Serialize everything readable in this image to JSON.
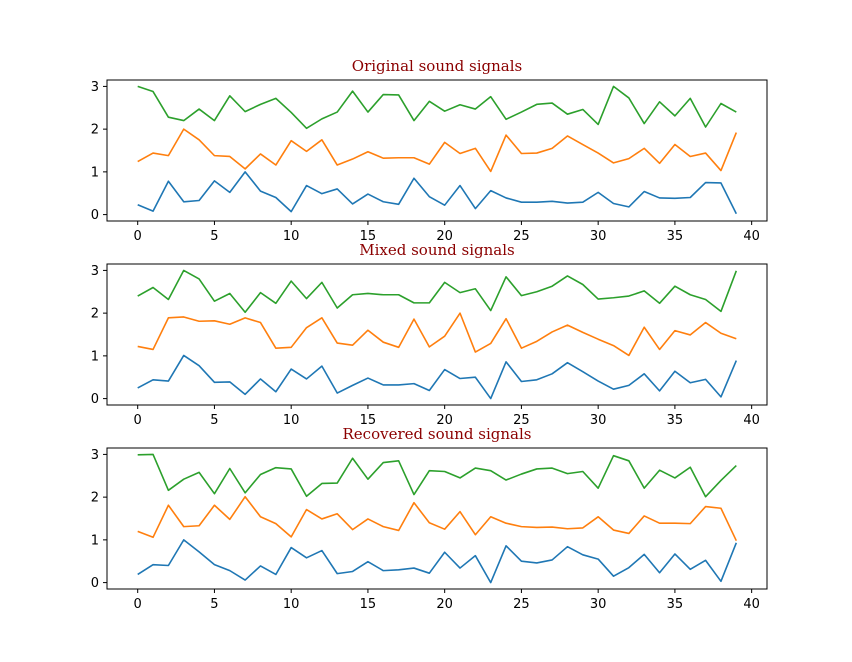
{
  "chart_data": [
    {
      "type": "line",
      "title": "Original sound signals",
      "xlim": [
        -2,
        41
      ],
      "ylim": [
        -0.15,
        3.15
      ],
      "xticks": [
        0,
        5,
        10,
        15,
        20,
        25,
        30,
        35,
        40
      ],
      "yticks": [
        0,
        1,
        2,
        3
      ],
      "grid": false,
      "x": [
        0,
        1,
        2,
        3,
        4,
        5,
        6,
        7,
        8,
        9,
        10,
        11,
        12,
        13,
        14,
        15,
        16,
        17,
        18,
        19,
        20,
        21,
        22,
        23,
        24,
        25,
        26,
        27,
        28,
        29,
        30,
        31,
        32,
        33,
        34,
        35,
        36,
        37,
        38,
        39
      ],
      "series": [
        {
          "color": "#1f77b4",
          "values": [
            0.23,
            0.08,
            0.78,
            0.3,
            0.33,
            0.79,
            0.52,
            1.0,
            0.55,
            0.4,
            0.07,
            0.68,
            0.49,
            0.6,
            0.25,
            0.48,
            0.3,
            0.24,
            0.85,
            0.42,
            0.22,
            0.68,
            0.14,
            0.56,
            0.39,
            0.29,
            0.29,
            0.31,
            0.27,
            0.29,
            0.52,
            0.26,
            0.18,
            0.54,
            0.39,
            0.38,
            0.4,
            0.75,
            0.74,
            0.02
          ]
        },
        {
          "color": "#ff7f0e",
          "values": [
            1.24,
            1.44,
            1.38,
            2.0,
            1.75,
            1.38,
            1.36,
            1.07,
            1.42,
            1.16,
            1.73,
            1.48,
            1.75,
            1.16,
            1.3,
            1.47,
            1.32,
            1.33,
            1.33,
            1.18,
            1.69,
            1.43,
            1.55,
            1.01,
            1.86,
            1.43,
            1.44,
            1.55,
            1.84,
            1.64,
            1.44,
            1.21,
            1.31,
            1.55,
            1.2,
            1.64,
            1.36,
            1.44,
            1.03,
            1.92
          ]
        },
        {
          "color": "#2ca02c",
          "values": [
            3.0,
            2.88,
            2.28,
            2.2,
            2.47,
            2.2,
            2.78,
            2.41,
            2.58,
            2.72,
            2.39,
            2.02,
            2.24,
            2.4,
            2.89,
            2.4,
            2.81,
            2.8,
            2.2,
            2.65,
            2.42,
            2.57,
            2.47,
            2.76,
            2.23,
            2.4,
            2.58,
            2.61,
            2.35,
            2.46,
            2.11,
            3.0,
            2.73,
            2.13,
            2.64,
            2.31,
            2.72,
            2.05,
            2.6,
            2.4
          ]
        }
      ]
    },
    {
      "type": "line",
      "title": "Mixed sound signals",
      "xlim": [
        -2,
        41
      ],
      "ylim": [
        -0.15,
        3.15
      ],
      "xticks": [
        0,
        5,
        10,
        15,
        20,
        25,
        30,
        35,
        40
      ],
      "yticks": [
        0,
        1,
        2,
        3
      ],
      "grid": false,
      "x": [
        0,
        1,
        2,
        3,
        4,
        5,
        6,
        7,
        8,
        9,
        10,
        11,
        12,
        13,
        14,
        15,
        16,
        17,
        18,
        19,
        20,
        21,
        22,
        23,
        24,
        25,
        26,
        27,
        28,
        29,
        30,
        31,
        32,
        33,
        34,
        35,
        36,
        37,
        38,
        39
      ],
      "series": [
        {
          "color": "#1f77b4",
          "values": [
            0.25,
            0.44,
            0.41,
            1.01,
            0.77,
            0.38,
            0.39,
            0.1,
            0.46,
            0.16,
            0.69,
            0.46,
            0.76,
            0.13,
            0.31,
            0.48,
            0.32,
            0.32,
            0.35,
            0.19,
            0.68,
            0.47,
            0.5,
            0.0,
            0.86,
            0.4,
            0.44,
            0.58,
            0.84,
            0.63,
            0.41,
            0.22,
            0.31,
            0.58,
            0.18,
            0.64,
            0.37,
            0.45,
            0.04,
            0.89
          ]
        },
        {
          "color": "#ff7f0e",
          "values": [
            1.22,
            1.15,
            1.89,
            1.91,
            1.81,
            1.82,
            1.74,
            1.89,
            1.78,
            1.18,
            1.2,
            1.66,
            1.89,
            1.3,
            1.25,
            1.6,
            1.32,
            1.2,
            1.86,
            1.21,
            1.46,
            2.0,
            1.09,
            1.29,
            1.87,
            1.18,
            1.34,
            1.56,
            1.72,
            1.55,
            1.39,
            1.24,
            1.01,
            1.67,
            1.15,
            1.59,
            1.49,
            1.78,
            1.53,
            1.4
          ]
        },
        {
          "color": "#2ca02c",
          "values": [
            2.4,
            2.6,
            2.32,
            3.0,
            2.8,
            2.28,
            2.46,
            2.02,
            2.48,
            2.23,
            2.75,
            2.34,
            2.72,
            2.12,
            2.43,
            2.46,
            2.43,
            2.43,
            2.24,
            2.24,
            2.72,
            2.48,
            2.57,
            2.06,
            2.85,
            2.41,
            2.5,
            2.63,
            2.87,
            2.67,
            2.33,
            2.36,
            2.4,
            2.52,
            2.23,
            2.63,
            2.43,
            2.32,
            2.04,
            2.99
          ]
        }
      ]
    },
    {
      "type": "line",
      "title": "Recovered sound signals",
      "xlim": [
        -2,
        41
      ],
      "ylim": [
        -0.15,
        3.15
      ],
      "xticks": [
        0,
        5,
        10,
        15,
        20,
        25,
        30,
        35,
        40
      ],
      "yticks": [
        0,
        1,
        2,
        3
      ],
      "grid": false,
      "x": [
        0,
        1,
        2,
        3,
        4,
        5,
        6,
        7,
        8,
        9,
        10,
        11,
        12,
        13,
        14,
        15,
        16,
        17,
        18,
        19,
        20,
        21,
        22,
        23,
        24,
        25,
        26,
        27,
        28,
        29,
        30,
        31,
        32,
        33,
        34,
        35,
        36,
        37,
        38,
        39
      ],
      "series": [
        {
          "color": "#1f77b4",
          "values": [
            0.19,
            0.42,
            0.4,
            1.0,
            0.72,
            0.42,
            0.28,
            0.06,
            0.39,
            0.19,
            0.82,
            0.58,
            0.75,
            0.21,
            0.26,
            0.49,
            0.28,
            0.3,
            0.34,
            0.22,
            0.71,
            0.34,
            0.63,
            0.0,
            0.86,
            0.5,
            0.46,
            0.53,
            0.84,
            0.65,
            0.55,
            0.15,
            0.35,
            0.66,
            0.23,
            0.67,
            0.31,
            0.52,
            0.03,
            0.93
          ]
        },
        {
          "color": "#ff7f0e",
          "values": [
            1.2,
            1.06,
            1.81,
            1.31,
            1.33,
            1.81,
            1.48,
            2.01,
            1.54,
            1.38,
            1.07,
            1.71,
            1.49,
            1.61,
            1.24,
            1.49,
            1.31,
            1.22,
            1.87,
            1.4,
            1.25,
            1.66,
            1.12,
            1.54,
            1.39,
            1.31,
            1.29,
            1.3,
            1.26,
            1.28,
            1.54,
            1.23,
            1.15,
            1.56,
            1.39,
            1.39,
            1.38,
            1.78,
            1.74,
            0.98
          ]
        },
        {
          "color": "#2ca02c",
          "values": [
            2.99,
            3.0,
            2.16,
            2.42,
            2.58,
            2.08,
            2.67,
            2.1,
            2.53,
            2.69,
            2.66,
            2.02,
            2.32,
            2.33,
            2.91,
            2.42,
            2.81,
            2.85,
            2.06,
            2.62,
            2.6,
            2.45,
            2.68,
            2.62,
            2.4,
            2.54,
            2.66,
            2.68,
            2.55,
            2.6,
            2.21,
            2.97,
            2.85,
            2.21,
            2.63,
            2.45,
            2.7,
            2.01,
            2.39,
            2.74
          ]
        }
      ]
    }
  ]
}
